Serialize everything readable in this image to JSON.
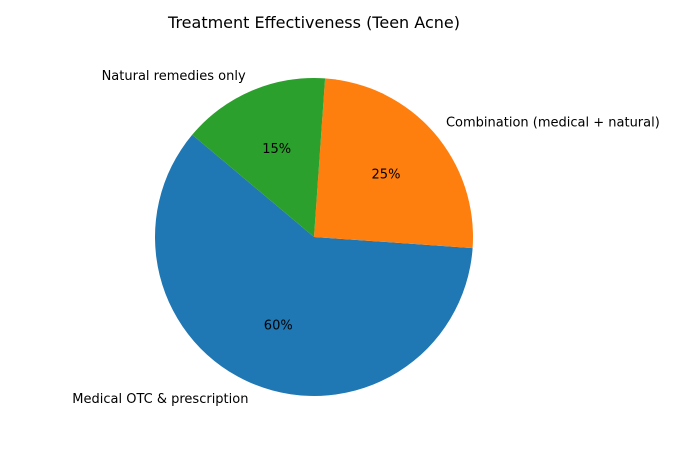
{
  "chart_data": {
    "type": "pie",
    "title": "Treatment Effectiveness (Teen Acne)",
    "categories": [
      "Medical OTC & prescription",
      "Combination (medical + natural)",
      "Natural remedies only"
    ],
    "values": [
      60,
      25,
      15
    ],
    "pct_labels": [
      "60%",
      "25%",
      "15%"
    ],
    "colors": [
      "#1f77b4",
      "#ff7f0e",
      "#2ca02c"
    ],
    "start_angle_deg": 140,
    "direction": "counterclockwise",
    "legend": "none"
  }
}
